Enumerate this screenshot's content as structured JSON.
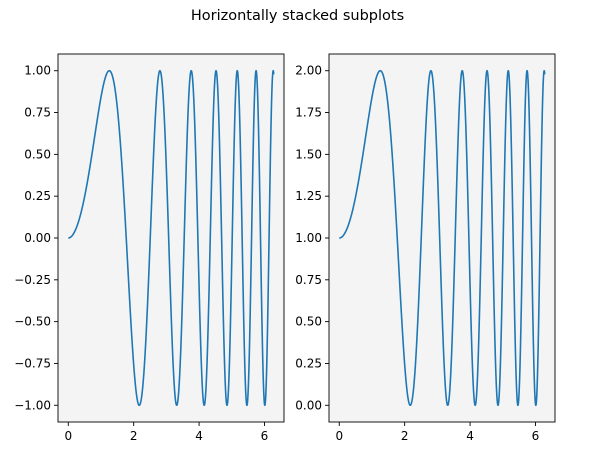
{
  "figure": {
    "suptitle": "Horizontally stacked subplots"
  },
  "colors": {
    "line": "#1f77b4",
    "axes_facecolor": "#f4f4f4",
    "figure_background": "#ffffff",
    "spine": "#000000"
  },
  "chart_data": [
    {
      "type": "line",
      "function": "sin(x^2)",
      "x_range": [
        0,
        6.283
      ],
      "xlim": [
        -0.314,
        6.597
      ],
      "ylim": [
        -1.1,
        1.1
      ],
      "xticks": [
        0,
        2,
        4,
        6
      ],
      "xtick_labels": [
        "0",
        "2",
        "4",
        "6"
      ],
      "yticks": [
        -1.0,
        -0.75,
        -0.5,
        -0.25,
        0.0,
        0.25,
        0.5,
        0.75,
        1.0
      ],
      "ytick_labels": [
        "−1.00",
        "−0.75",
        "−0.50",
        "−0.25",
        "0.00",
        "0.25",
        "0.50",
        "0.75",
        "1.00"
      ],
      "title": "",
      "xlabel": "",
      "ylabel": "",
      "grid": false,
      "series": [
        {
          "x": [
            0,
            0.5,
            1.0,
            1.2533,
            1.5,
            1.7725,
            2.0,
            2.1708,
            2.5066,
            2.8025,
            3.0,
            3.07,
            3.316,
            3.5449,
            3.7599,
            3.9633,
            4.1568,
            4.3416,
            4.5189,
            4.6896,
            4.8541,
            5.0133,
            5.1675,
            5.3172,
            5.4627,
            5.6045,
            5.7426,
            5.8774,
            6.0092,
            6.1381,
            6.283
          ],
          "y": [
            0,
            0.247,
            0.841,
            1.0,
            0.778,
            0.0,
            -0.757,
            -1.0,
            0.0,
            1.0,
            0.412,
            0.0,
            -1.0,
            0.0,
            1.0,
            0.0,
            -1.0,
            0.0,
            1.0,
            0.0,
            -1.0,
            0.0,
            1.0,
            0.0,
            -1.0,
            0.0,
            1.0,
            0.0,
            -1.0,
            0.0,
            0.975
          ]
        }
      ]
    },
    {
      "type": "line",
      "function": "sin(x^2) + 1",
      "x_range": [
        0,
        6.283
      ],
      "xlim": [
        -0.314,
        6.597
      ],
      "ylim": [
        -0.1,
        2.1
      ],
      "xticks": [
        0,
        2,
        4,
        6
      ],
      "xtick_labels": [
        "0",
        "2",
        "4",
        "6"
      ],
      "yticks": [
        0.0,
        0.25,
        0.5,
        0.75,
        1.0,
        1.25,
        1.5,
        1.75,
        2.0
      ],
      "ytick_labels": [
        "0.00",
        "0.25",
        "0.50",
        "0.75",
        "1.00",
        "1.25",
        "1.50",
        "1.75",
        "2.00"
      ],
      "title": "",
      "xlabel": "",
      "ylabel": "",
      "grid": false,
      "series": [
        {
          "x": [
            0,
            0.5,
            1.0,
            1.2533,
            1.5,
            1.7725,
            2.0,
            2.1708,
            2.5066,
            2.8025,
            3.0,
            3.07,
            3.316,
            3.5449,
            3.7599,
            3.9633,
            4.1568,
            4.3416,
            4.5189,
            4.6896,
            4.8541,
            5.0133,
            5.1675,
            5.3172,
            5.4627,
            5.6045,
            5.7426,
            5.8774,
            6.0092,
            6.1381,
            6.283
          ],
          "y": [
            1.0,
            1.247,
            1.841,
            2.0,
            1.778,
            1.0,
            0.243,
            0.0,
            1.0,
            2.0,
            1.412,
            1.0,
            0.0,
            1.0,
            2.0,
            1.0,
            0.0,
            1.0,
            2.0,
            1.0,
            0.0,
            1.0,
            2.0,
            1.0,
            0.0,
            1.0,
            2.0,
            1.0,
            0.0,
            1.0,
            1.975
          ]
        }
      ]
    }
  ]
}
